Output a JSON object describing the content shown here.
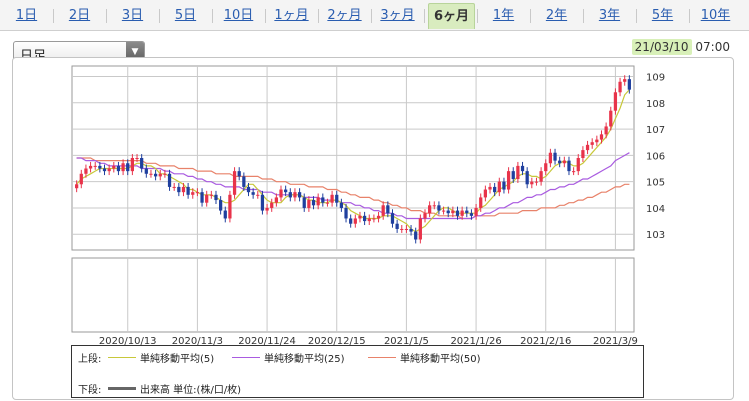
{
  "tabs": [
    {
      "label": "1日",
      "active": false
    },
    {
      "label": "2日",
      "active": false
    },
    {
      "label": "3日",
      "active": false
    },
    {
      "label": "5日",
      "active": false
    },
    {
      "label": "10日",
      "active": false
    },
    {
      "label": "1ヶ月",
      "active": false
    },
    {
      "label": "2ヶ月",
      "active": false
    },
    {
      "label": "3ヶ月",
      "active": false
    },
    {
      "label": "6ヶ月",
      "active": true
    },
    {
      "label": "1年",
      "active": false
    },
    {
      "label": "2年",
      "active": false
    },
    {
      "label": "3年",
      "active": false
    },
    {
      "label": "5年",
      "active": false
    },
    {
      "label": "10年",
      "active": false
    }
  ],
  "interval_select": {
    "value": "日足"
  },
  "timestamp": {
    "date": "21/03/10",
    "time": "07:00"
  },
  "legend": {
    "upper_label": "上段:",
    "lower_label": "下段:",
    "ma5": "単純移動平均(5)",
    "ma25": "単純移動平均(25)",
    "ma50": "単純移動平均(50)",
    "volume": "出来高 単位:(株/口/枚)"
  },
  "colors": {
    "up_candle": "#e8334a",
    "down_candle": "#1f3f9e",
    "ma5": "#c8c83a",
    "ma25": "#a95be0",
    "ma50": "#e8826a",
    "active_tab": "#d9ecbf",
    "date_highlight": "#d8f0b8"
  },
  "chart_data": {
    "type": "candlestick",
    "y_ticks": [
      103,
      104,
      105,
      106,
      107,
      108,
      109
    ],
    "ylim": [
      102.4,
      109.4
    ],
    "x_tick_labels": [
      "2020/10/13",
      "2020/11/3",
      "2020/11/24",
      "2020/12/15",
      "2021/1/5",
      "2021/1/26",
      "2021/2/16",
      "2021/3/9"
    ],
    "x_tick_index": [
      11,
      26,
      41,
      56,
      71,
      86,
      101,
      116
    ],
    "grid": true,
    "closes": [
      104.9,
      105.3,
      105.5,
      105.6,
      105.6,
      105.5,
      105.4,
      105.5,
      105.6,
      105.4,
      105.7,
      105.4,
      105.9,
      105.9,
      105.5,
      105.3,
      105.3,
      105.2,
      105.3,
      105.3,
      104.8,
      104.8,
      104.6,
      104.8,
      104.5,
      104.6,
      104.6,
      104.2,
      104.5,
      104.5,
      104.3,
      103.9,
      103.6,
      104.5,
      105.4,
      105.2,
      104.8,
      104.6,
      104.5,
      104.5,
      103.9,
      104.0,
      104.2,
      104.4,
      104.7,
      104.6,
      104.4,
      104.6,
      104.4,
      104.0,
      104.3,
      104.1,
      104.4,
      104.2,
      104.2,
      104.5,
      104.2,
      104.0,
      103.6,
      103.4,
      103.6,
      103.7,
      103.5,
      103.6,
      103.6,
      103.7,
      104.1,
      103.8,
      103.4,
      103.2,
      103.2,
      103.2,
      103.1,
      102.8,
      103.6,
      103.8,
      104.1,
      104.1,
      103.9,
      103.9,
      103.8,
      103.9,
      103.7,
      103.9,
      103.8,
      103.7,
      104.0,
      104.4,
      104.7,
      104.8,
      104.6,
      105.0,
      104.7,
      105.4,
      105.1,
      105.6,
      105.4,
      104.9,
      105.0,
      105.0,
      105.4,
      105.7,
      106.1,
      105.8,
      105.7,
      105.8,
      105.4,
      105.4,
      105.9,
      106.2,
      106.4,
      106.5,
      106.6,
      106.8,
      107.1,
      107.7,
      108.4,
      108.8,
      108.9,
      108.5
    ],
    "ma5": [
      104.9,
      105.1,
      105.2,
      105.3,
      105.4,
      105.5,
      105.5,
      105.5,
      105.5,
      105.5,
      105.5,
      105.5,
      105.6,
      105.7,
      105.7,
      105.6,
      105.6,
      105.5,
      105.3,
      105.3,
      105.2,
      105.1,
      105.0,
      104.9,
      104.7,
      104.7,
      104.6,
      104.5,
      104.5,
      104.5,
      104.4,
      104.3,
      104.2,
      104.2,
      104.3,
      104.5,
      104.7,
      104.9,
      104.9,
      104.7,
      104.5,
      104.3,
      104.2,
      104.2,
      104.2,
      104.4,
      104.5,
      104.5,
      104.5,
      104.4,
      104.3,
      104.3,
      104.2,
      104.2,
      104.2,
      104.3,
      104.3,
      104.2,
      104.1,
      103.9,
      103.8,
      103.7,
      103.6,
      103.6,
      103.6,
      103.6,
      103.7,
      103.7,
      103.7,
      103.6,
      103.5,
      103.4,
      103.2,
      103.1,
      103.2,
      103.3,
      103.5,
      103.7,
      103.9,
      104.0,
      104.0,
      103.9,
      103.8,
      103.8,
      103.8,
      103.8,
      103.8,
      104.0,
      104.1,
      104.3,
      104.5,
      104.7,
      104.8,
      104.9,
      105.0,
      105.2,
      105.3,
      105.3,
      105.2,
      105.2,
      105.1,
      105.2,
      105.4,
      105.6,
      105.7,
      105.8,
      105.7,
      105.6,
      105.6,
      105.7,
      105.9,
      106.1,
      106.3,
      106.5,
      106.7,
      107.0,
      107.4,
      107.8,
      108.3,
      108.5
    ],
    "ma25": [
      105.9,
      105.9,
      105.8,
      105.8,
      105.8,
      105.7,
      105.7,
      105.6,
      105.6,
      105.6,
      105.6,
      105.6,
      105.6,
      105.6,
      105.5,
      105.5,
      105.5,
      105.5,
      105.5,
      105.4,
      105.4,
      105.3,
      105.3,
      105.3,
      105.2,
      105.2,
      105.1,
      105.1,
      105.0,
      105.0,
      104.9,
      104.9,
      104.8,
      104.8,
      104.8,
      104.8,
      104.7,
      104.7,
      104.7,
      104.7,
      104.6,
      104.6,
      104.6,
      104.5,
      104.5,
      104.5,
      104.5,
      104.5,
      104.5,
      104.4,
      104.4,
      104.4,
      104.4,
      104.3,
      104.3,
      104.3,
      104.3,
      104.2,
      104.2,
      104.2,
      104.1,
      104.1,
      104.0,
      104.0,
      103.9,
      103.9,
      103.8,
      103.8,
      103.8,
      103.7,
      103.7,
      103.6,
      103.6,
      103.6,
      103.6,
      103.6,
      103.6,
      103.6,
      103.6,
      103.6,
      103.6,
      103.6,
      103.6,
      103.6,
      103.6,
      103.6,
      103.7,
      103.7,
      103.8,
      103.8,
      103.9,
      104.0,
      104.0,
      104.1,
      104.2,
      104.2,
      104.3,
      104.4,
      104.4,
      104.5,
      104.5,
      104.6,
      104.7,
      104.7,
      104.8,
      104.8,
      104.9,
      104.9,
      105.0,
      105.1,
      105.1,
      105.2,
      105.3,
      105.4,
      105.5,
      105.6,
      105.8,
      105.9,
      106.0,
      106.1
    ],
    "ma50": [
      105.9,
      105.9,
      105.9,
      105.9,
      105.8,
      105.8,
      105.8,
      105.8,
      105.8,
      105.8,
      105.8,
      105.8,
      105.8,
      105.8,
      105.8,
      105.7,
      105.7,
      105.7,
      105.6,
      105.6,
      105.6,
      105.6,
      105.5,
      105.5,
      105.5,
      105.5,
      105.4,
      105.4,
      105.4,
      105.4,
      105.3,
      105.3,
      105.3,
      105.3,
      105.2,
      105.2,
      105.2,
      105.2,
      105.2,
      105.2,
      105.1,
      105.1,
      105.1,
      105.0,
      105.0,
      105.0,
      104.9,
      104.9,
      104.9,
      104.9,
      104.8,
      104.8,
      104.8,
      104.8,
      104.7,
      104.7,
      104.7,
      104.6,
      104.6,
      104.5,
      104.5,
      104.4,
      104.4,
      104.4,
      104.3,
      104.3,
      104.2,
      104.2,
      104.1,
      104.1,
      104.0,
      104.0,
      103.9,
      103.9,
      103.9,
      103.8,
      103.8,
      103.8,
      103.7,
      103.7,
      103.7,
      103.7,
      103.7,
      103.6,
      103.6,
      103.6,
      103.7,
      103.7,
      103.7,
      103.7,
      103.7,
      103.8,
      103.8,
      103.8,
      103.8,
      103.8,
      103.9,
      103.9,
      103.9,
      103.9,
      104.0,
      104.0,
      104.0,
      104.0,
      104.1,
      104.1,
      104.2,
      104.2,
      104.3,
      104.3,
      104.4,
      104.4,
      104.5,
      104.6,
      104.6,
      104.7,
      104.8,
      104.8,
      104.9,
      104.9
    ]
  }
}
